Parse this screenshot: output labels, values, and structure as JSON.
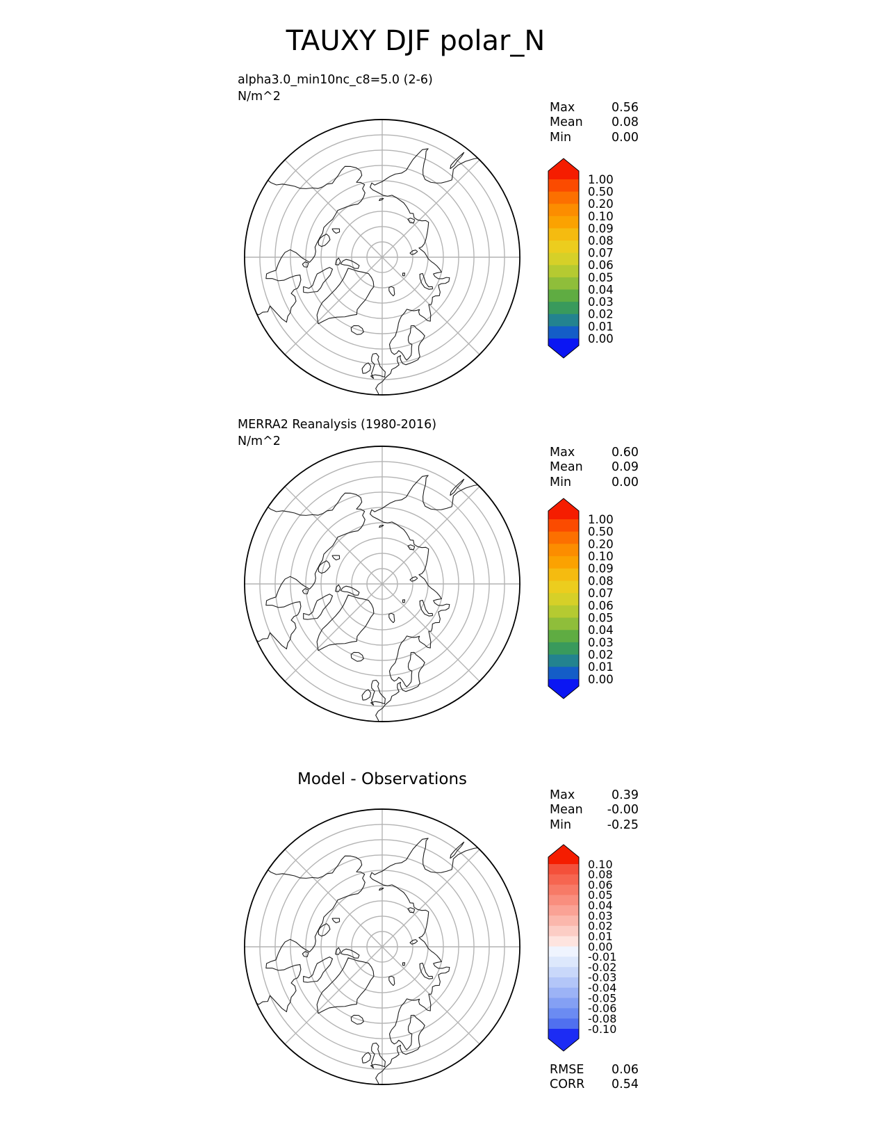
{
  "title": "TAUXY DJF polar_N",
  "panels": [
    {
      "name": "model",
      "label_line1": "alpha3.0_min10nc_c8=5.0 (2-6)",
      "label_line2": "N/m^2",
      "stats": [
        {
          "label": "Max",
          "value": "0.56"
        },
        {
          "label": "Mean",
          "value": "0.08"
        },
        {
          "label": "Min",
          "value": "0.00"
        }
      ],
      "colorbar": {
        "tick_labels": [
          "1.00",
          "0.50",
          "0.20",
          "0.10",
          "0.09",
          "0.08",
          "0.07",
          "0.06",
          "0.05",
          "0.04",
          "0.03",
          "0.02",
          "0.01",
          "0.00"
        ],
        "segment_colors": [
          "#fb4b00",
          "#fc7000",
          "#fc8d00",
          "#fba201",
          "#f5bb10",
          "#eccd1e",
          "#d6d028",
          "#b5ca31",
          "#8fbe3a",
          "#5fac42",
          "#399a5c",
          "#23838f",
          "#145dc7"
        ],
        "arrow_top_color": "#f51d00",
        "arrow_bottom_color": "#0b16f3"
      }
    },
    {
      "name": "reference",
      "label_line1": "MERRA2 Reanalysis (1980-2016)",
      "label_line2": "N/m^2",
      "stats": [
        {
          "label": "Max",
          "value": "0.60"
        },
        {
          "label": "Mean",
          "value": "0.09"
        },
        {
          "label": "Min",
          "value": "0.00"
        }
      ],
      "colorbar": {
        "tick_labels": [
          "1.00",
          "0.50",
          "0.20",
          "0.10",
          "0.09",
          "0.08",
          "0.07",
          "0.06",
          "0.05",
          "0.04",
          "0.03",
          "0.02",
          "0.01",
          "0.00"
        ],
        "segment_colors": [
          "#fb4b00",
          "#fc7000",
          "#fc8d00",
          "#fba201",
          "#f5bb10",
          "#eccd1e",
          "#d6d028",
          "#b5ca31",
          "#8fbe3a",
          "#5fac42",
          "#399a5c",
          "#23838f",
          "#145dc7"
        ],
        "arrow_top_color": "#f51d00",
        "arrow_bottom_color": "#0b16f3"
      }
    },
    {
      "name": "difference",
      "title": "Model - Observations",
      "stats": [
        {
          "label": "Max",
          "value": "0.39"
        },
        {
          "label": "Mean",
          "value": "-0.00"
        },
        {
          "label": "Min",
          "value": "-0.25"
        }
      ],
      "colorbar": {
        "tick_labels": [
          "0.10",
          "0.08",
          "0.06",
          "0.05",
          "0.04",
          "0.03",
          "0.02",
          "0.01",
          "0.00",
          "-0.01",
          "-0.02",
          "-0.03",
          "-0.04",
          "-0.05",
          "-0.06",
          "-0.08",
          "-0.10"
        ],
        "segment_colors": [
          "#f4503a",
          "#f66550",
          "#f77a67",
          "#f98e7e",
          "#faa295",
          "#fbb7ac",
          "#fccdc5",
          "#fee4df",
          "#eff4fe",
          "#dde8fc",
          "#c9d8fa",
          "#b3c6f8",
          "#9cb3f6",
          "#84a0f4",
          "#6b8bf2",
          "#5070ef"
        ],
        "arrow_top_color": "#f51d00",
        "arrow_bottom_color": "#1c2cf4"
      }
    }
  ],
  "footer": [
    {
      "label": "RMSE",
      "value": "0.06"
    },
    {
      "label": "CORR",
      "value": "0.54"
    }
  ],
  "map_style": {
    "graticule_color": "#b3b3b3",
    "coastline_color": "#1a1a1a",
    "boundary_color": "#000000"
  },
  "chart_data": [
    {
      "type": "heatmap",
      "panel": "model",
      "title": "alpha3.0_min10nc_c8=5.0 (2-6)",
      "units": "N/m^2",
      "projection": "north polar (polar_N), graticule rings every 5 deg from 85N to 50N, meridians every 45 deg",
      "stats": {
        "max": 0.56,
        "mean": 0.08,
        "min": 0.0
      },
      "colorbar_levels": [
        0.0,
        0.01,
        0.02,
        0.03,
        0.04,
        0.05,
        0.06,
        0.07,
        0.08,
        0.09,
        0.1,
        0.2,
        0.5,
        1.0
      ]
    },
    {
      "type": "heatmap",
      "panel": "reference",
      "title": "MERRA2 Reanalysis (1980-2016)",
      "units": "N/m^2",
      "projection": "north polar (polar_N), graticule rings every 5 deg from 85N to 50N, meridians every 45 deg",
      "stats": {
        "max": 0.6,
        "mean": 0.09,
        "min": 0.0
      },
      "colorbar_levels": [
        0.0,
        0.01,
        0.02,
        0.03,
        0.04,
        0.05,
        0.06,
        0.07,
        0.08,
        0.09,
        0.1,
        0.2,
        0.5,
        1.0
      ]
    },
    {
      "type": "heatmap",
      "panel": "difference",
      "title": "Model - Observations",
      "units": "N/m^2",
      "projection": "north polar (polar_N), graticule rings every 5 deg from 85N to 50N, meridians every 45 deg",
      "stats": {
        "max": 0.39,
        "mean": -0.0,
        "min": -0.25,
        "rmse": 0.06,
        "corr": 0.54
      },
      "colorbar_levels": [
        -0.1,
        -0.08,
        -0.06,
        -0.05,
        -0.04,
        -0.03,
        -0.02,
        -0.01,
        0.0,
        0.01,
        0.02,
        0.03,
        0.04,
        0.05,
        0.06,
        0.08,
        0.1
      ]
    }
  ]
}
